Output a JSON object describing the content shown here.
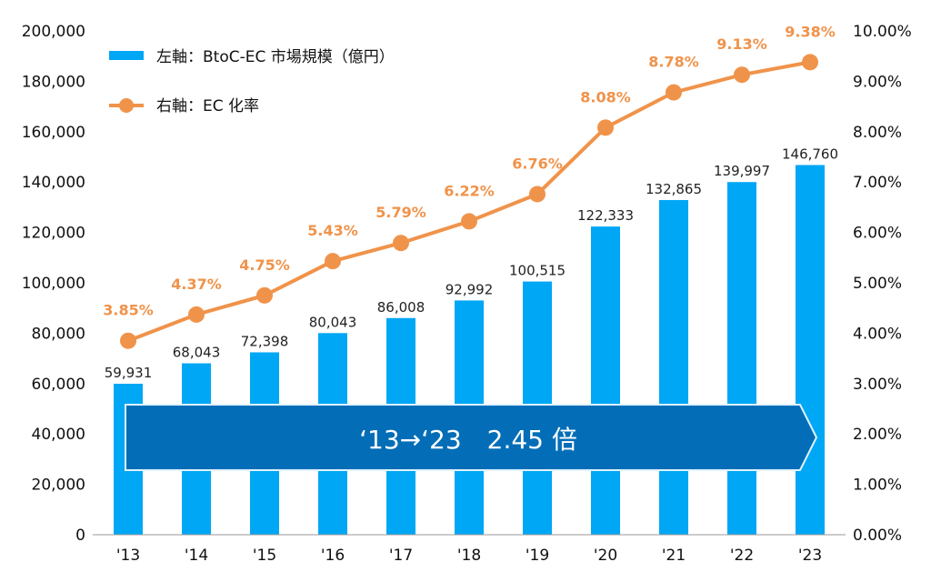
{
  "chart_data": {
    "type": "bar+line",
    "categories": [
      "'13",
      "'14",
      "'15",
      "'16",
      "'17",
      "'18",
      "'19",
      "'20",
      "'21",
      "'22",
      "'23"
    ],
    "series": [
      {
        "name": "左軸：BtoC-EC 市場規模（億円）",
        "type": "bar",
        "axis": "left",
        "color": "#00a7f5",
        "values": [
          59931,
          68043,
          72398,
          80043,
          86008,
          92992,
          100515,
          122333,
          132865,
          139997,
          146760
        ],
        "labels": [
          "59,931",
          "68,043",
          "72,398",
          "80,043",
          "86,008",
          "92,992",
          "100,515",
          "122,333",
          "132,865",
          "139,997",
          "146,760"
        ]
      },
      {
        "name": "右軸：EC 化率",
        "type": "line",
        "axis": "right",
        "color": "#f0934a",
        "values": [
          3.85,
          4.37,
          4.75,
          5.43,
          5.79,
          6.22,
          6.76,
          8.08,
          8.78,
          9.13,
          9.38
        ],
        "labels": [
          "3.85%",
          "4.37%",
          "4.75%",
          "5.43%",
          "5.79%",
          "6.22%",
          "6.76%",
          "8.08%",
          "8.78%",
          "9.13%",
          "9.38%"
        ]
      }
    ],
    "left_axis": {
      "range": [
        0,
        200000
      ],
      "ticks": [
        "0",
        "20,000",
        "40,000",
        "60,000",
        "80,000",
        "100,000",
        "120,000",
        "140,000",
        "160,000",
        "180,000",
        "200,000"
      ]
    },
    "right_axis": {
      "range": [
        0,
        10
      ],
      "ticks": [
        "0.00%",
        "1.00%",
        "2.00%",
        "3.00%",
        "4.00%",
        "5.00%",
        "6.00%",
        "7.00%",
        "8.00%",
        "9.00%",
        "10.00%"
      ]
    },
    "legend": {
      "placement": "top-left"
    },
    "grid": false,
    "annotation": {
      "text": "‘13→‘23　2.45 倍",
      "color": "#036eb7"
    }
  }
}
